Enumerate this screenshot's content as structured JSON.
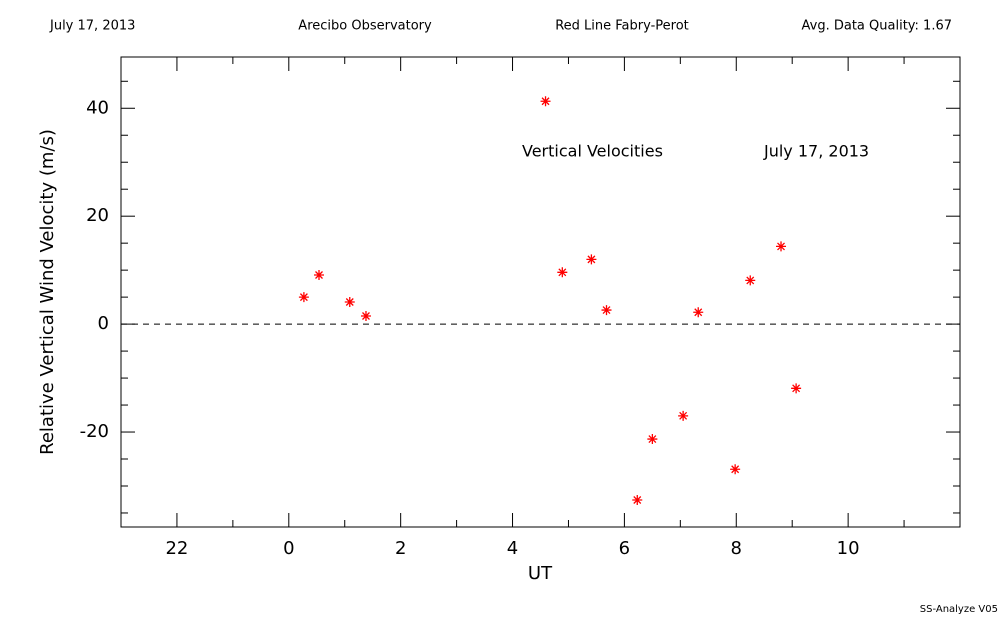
{
  "chart_data": {
    "type": "scatter",
    "header": [
      "July 17, 2013",
      "Arecibo Observatory",
      "Red Line Fabry-Perot",
      "Avg. Data Quality: 1.67"
    ],
    "annotations": [
      "Vertical Velocities",
      "July 17, 2013"
    ],
    "footer": "SS-Analyze V05",
    "xlabel": "UT",
    "ylabel": "Relative Vertical Wind Velocity (m/s)",
    "xlim": [
      -3,
      12
    ],
    "ylim": [
      -37.6,
      49.5
    ],
    "xticks": [
      {
        "value": -2,
        "label": "22"
      },
      0,
      2,
      4,
      6,
      8,
      10
    ],
    "yticks": [
      -20,
      0,
      20,
      40
    ],
    "xminorticks": [
      -3,
      -1,
      1,
      3,
      5,
      7,
      9,
      11
    ],
    "yminorticks": [
      -35,
      -30,
      -25,
      -15,
      -10,
      -5,
      5,
      10,
      15,
      25,
      30,
      35,
      45
    ],
    "reference_line": 0,
    "color": "#ff0000",
    "x": [
      0.27,
      0.54,
      1.09,
      1.38,
      4.59,
      4.89,
      5.41,
      5.68,
      6.23,
      6.5,
      7.05,
      7.32,
      7.98,
      8.25,
      8.8,
      9.07
    ],
    "values": [
      5.0,
      9.1,
      4.1,
      1.5,
      41.3,
      9.6,
      12.0,
      2.6,
      -32.6,
      -21.3,
      -17.0,
      2.2,
      -26.9,
      8.1,
      14.4,
      -11.9
    ]
  }
}
